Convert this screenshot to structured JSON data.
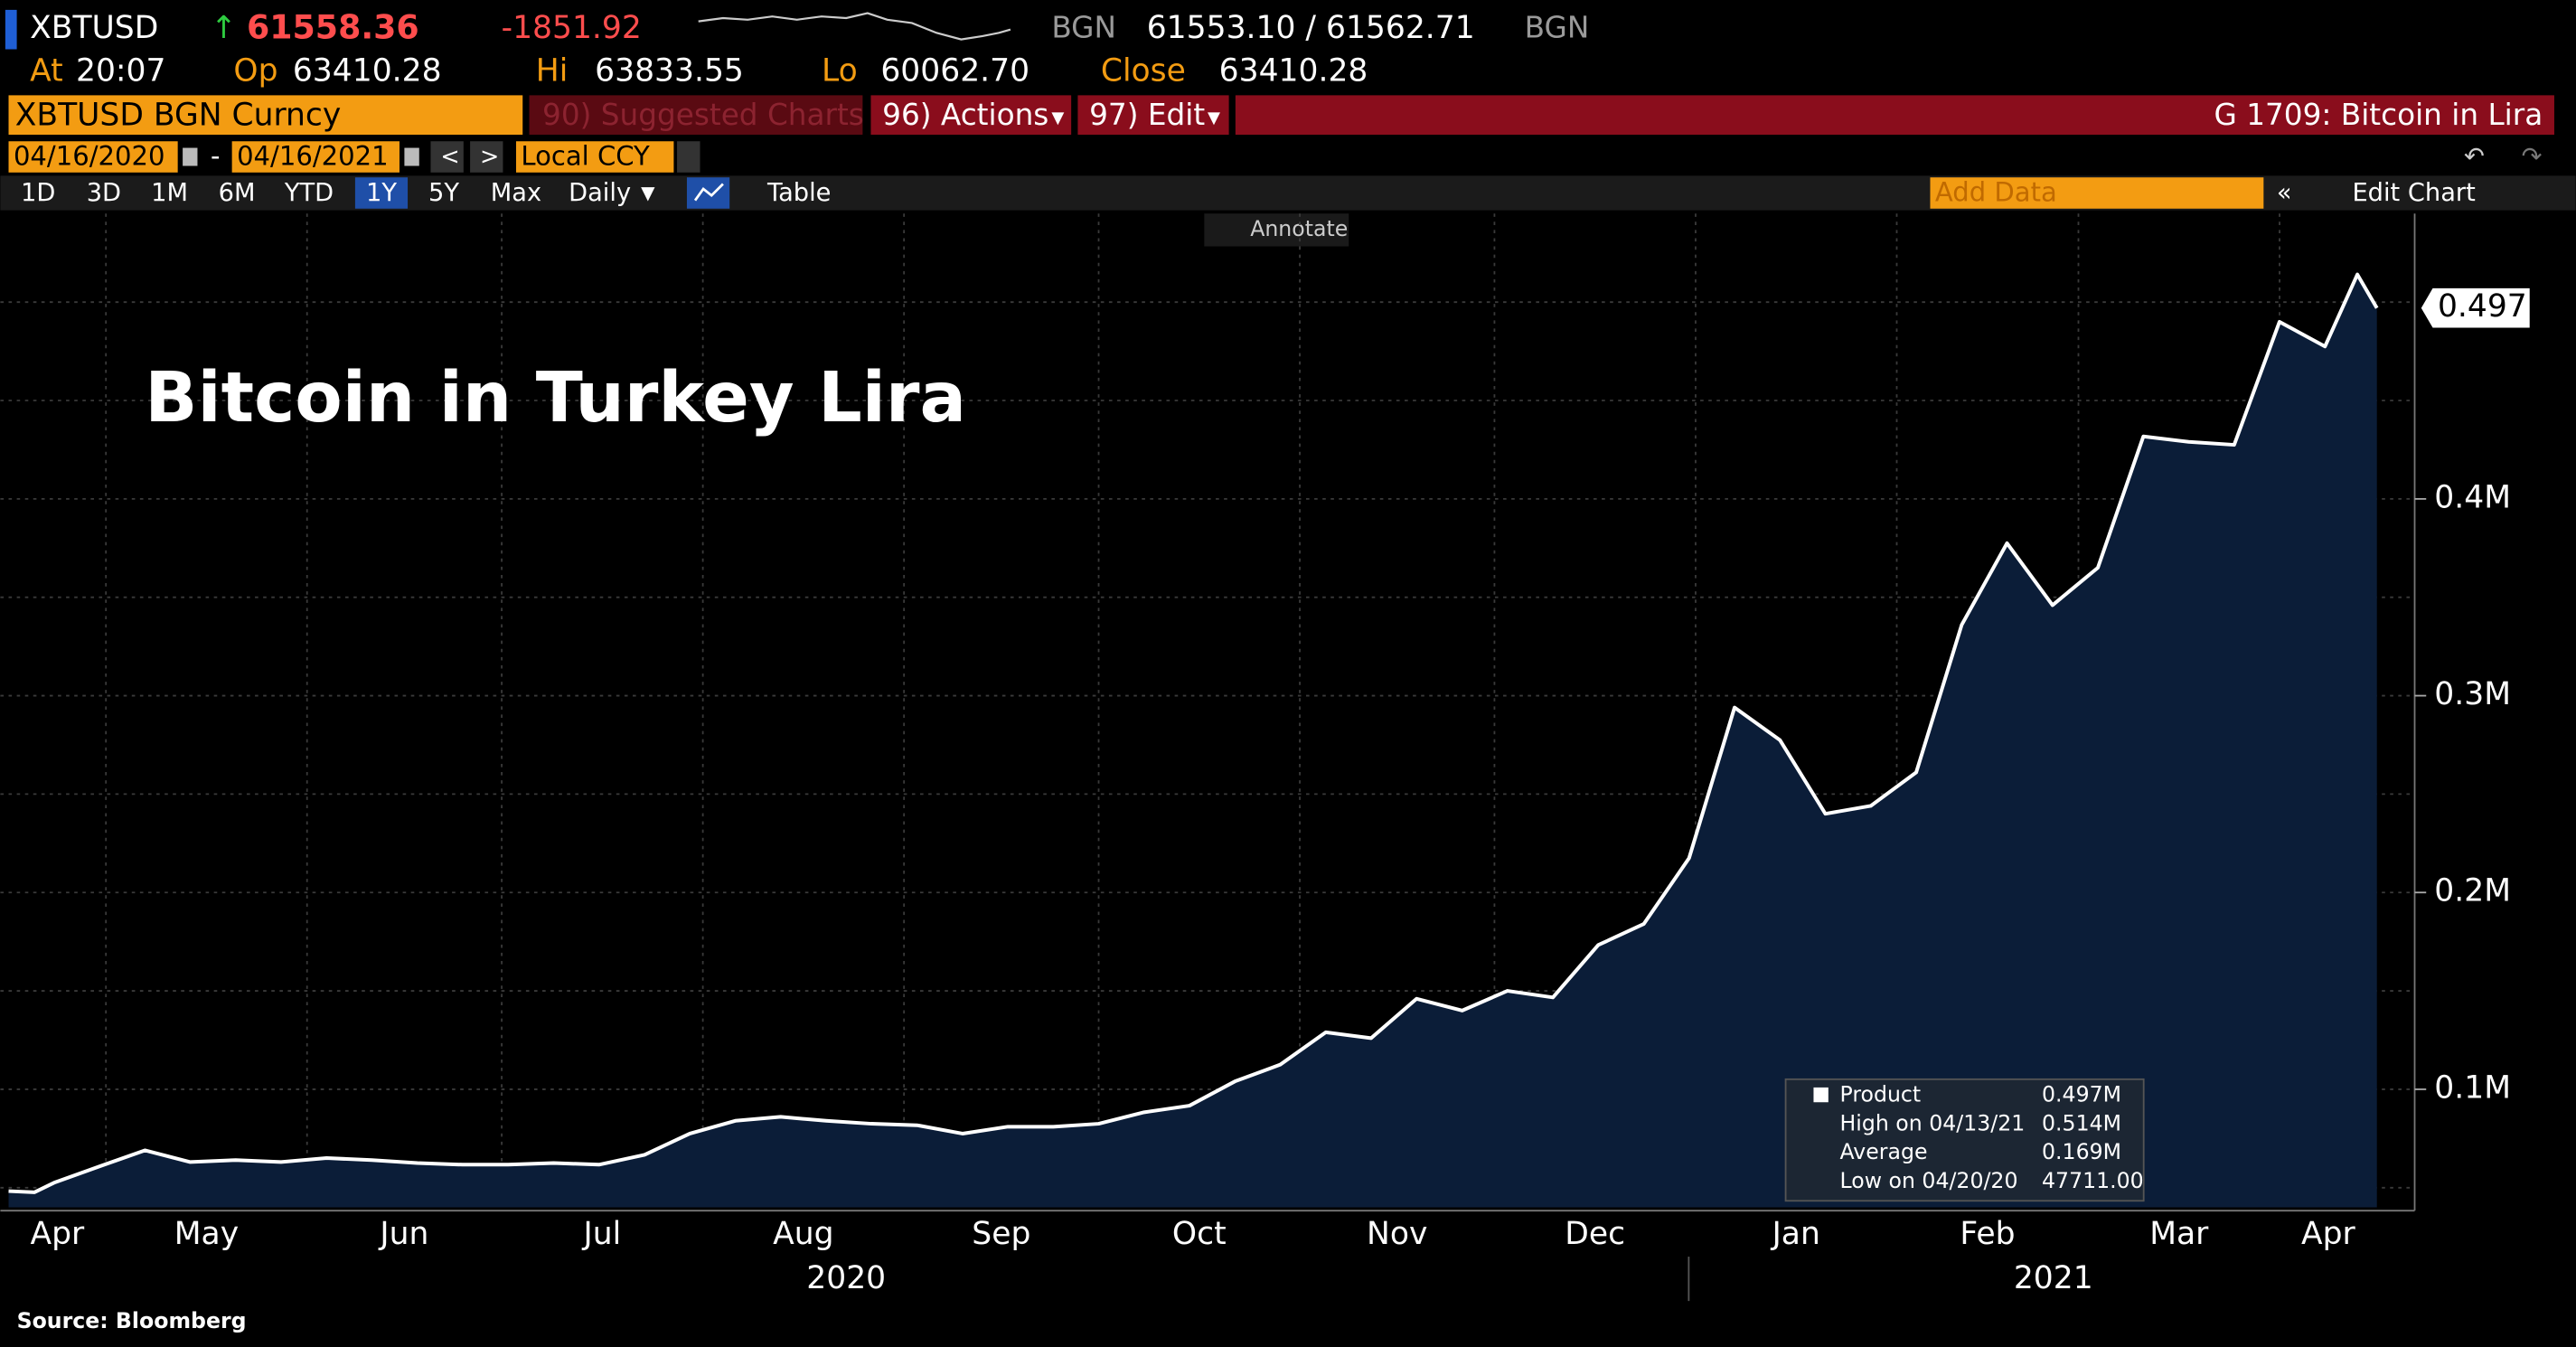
{
  "ui": {
    "ticker": "XBTUSD",
    "last": "61558.36",
    "change": "-1851.92",
    "bid_source": "BGN",
    "bid_ask": "61553.10 / 61562.71",
    "ask_source": "BGN",
    "quote_row": [
      [
        "At",
        "20:07"
      ],
      [
        "Op",
        "63410.28"
      ],
      [
        "Hi",
        "63833.55"
      ],
      [
        "Lo",
        "60062.70"
      ],
      [
        "Close",
        "63410.28"
      ]
    ],
    "security": "XBTUSD BGN Curncy",
    "suggested": "90) Suggested Charts",
    "actions": "96) Actions",
    "edit": "97) Edit",
    "chart_name": "G 1709: Bitcoin in Lira",
    "start_date": "04/16/2020",
    "end_date": "04/16/2021",
    "currency": "Local CCY",
    "periods": [
      "1D",
      "3D",
      "1M",
      "6M",
      "YTD",
      "1Y",
      "5Y",
      "Max"
    ],
    "frequency": "Daily",
    "table": "Table",
    "add_data": "Add Data",
    "edit_chart": "Edit Chart",
    "annotate": "Annotate"
  },
  "chart_data": {
    "type": "area",
    "title": "Bitcoin in Turkey Lira",
    "source": "Source: Bloomberg",
    "color": "#ffffff",
    "area_color": "#0b1d38",
    "x": [
      "2020-04-16",
      "2020-04-20",
      "2020-04-23",
      "2020-04-30",
      "2020-05-07",
      "2020-05-14",
      "2020-05-21",
      "2020-05-28",
      "2020-06-04",
      "2020-06-11",
      "2020-06-18",
      "2020-06-25",
      "2020-07-02",
      "2020-07-09",
      "2020-07-16",
      "2020-07-23",
      "2020-07-30",
      "2020-08-06",
      "2020-08-13",
      "2020-08-20",
      "2020-08-27",
      "2020-09-03",
      "2020-09-10",
      "2020-09-17",
      "2020-09-24",
      "2020-10-01",
      "2020-10-08",
      "2020-10-15",
      "2020-10-22",
      "2020-10-29",
      "2020-11-05",
      "2020-11-12",
      "2020-11-19",
      "2020-11-26",
      "2020-12-03",
      "2020-12-10",
      "2020-12-17",
      "2020-12-24",
      "2020-12-31",
      "2021-01-07",
      "2021-01-14",
      "2021-01-21",
      "2021-01-28",
      "2021-02-04",
      "2021-02-11",
      "2021-02-18",
      "2021-02-25",
      "2021-03-04",
      "2021-03-11",
      "2021-03-18",
      "2021-03-25",
      "2021-04-01",
      "2021-04-08",
      "2021-04-13",
      "2021-04-16"
    ],
    "values": [
      48300,
      47711,
      52500,
      60800,
      69000,
      63000,
      64000,
      63000,
      65000,
      64000,
      62500,
      61700,
      61700,
      62500,
      61700,
      66700,
      77500,
      84000,
      86000,
      84000,
      82500,
      81700,
      77500,
      81000,
      81000,
      82500,
      88300,
      91700,
      104000,
      112500,
      129000,
      126000,
      146000,
      140000,
      150000,
      146700,
      173300,
      184000,
      217500,
      294000,
      277500,
      240000,
      244000,
      261000,
      336000,
      377500,
      346000,
      365000,
      431700,
      429000,
      427500,
      490000,
      477500,
      514000,
      497000
    ],
    "last_value_label": {
      "value": 497000,
      "label": "0.497M"
    },
    "xlim": [
      "2020-04-16",
      "2021-04-16"
    ],
    "xticks": [
      {
        "value": "2020-04-01",
        "label": "Apr"
      },
      {
        "value": "2020-05-01",
        "label": "May"
      },
      {
        "value": "2020-06-01",
        "label": "Jun"
      },
      {
        "value": "2020-07-01",
        "label": "Jul"
      },
      {
        "value": "2020-08-01",
        "label": "Aug"
      },
      {
        "value": "2020-09-01",
        "label": "Sep"
      },
      {
        "value": "2020-10-01",
        "label": "Oct"
      },
      {
        "value": "2020-11-01",
        "label": "Nov"
      },
      {
        "value": "2020-12-01",
        "label": "Dec"
      },
      {
        "value": "2021-01-01",
        "label": "Jan"
      },
      {
        "value": "2021-02-01",
        "label": "Feb"
      },
      {
        "value": "2021-03-01",
        "label": "Mar"
      },
      {
        "value": "2021-04-01",
        "label": "Apr"
      }
    ],
    "year_labels": [
      "2020",
      "2021"
    ],
    "ylim": [
      40000,
      545000
    ],
    "yticks": [
      {
        "value": 100000,
        "label": "0.1M"
      },
      {
        "value": 200000,
        "label": "0.2M"
      },
      {
        "value": 300000,
        "label": "0.3M"
      },
      {
        "value": 400000,
        "label": "0.4M"
      }
    ],
    "minor_yticks": [
      50000,
      150000,
      250000,
      350000,
      450000,
      500000
    ],
    "grid": true,
    "stats": [
      [
        "Product",
        "0.497M"
      ],
      [
        "High on 04/13/21",
        "0.514M"
      ],
      [
        "Average",
        "0.169M"
      ],
      [
        "Low on 04/20/20",
        "47711.00"
      ]
    ]
  }
}
